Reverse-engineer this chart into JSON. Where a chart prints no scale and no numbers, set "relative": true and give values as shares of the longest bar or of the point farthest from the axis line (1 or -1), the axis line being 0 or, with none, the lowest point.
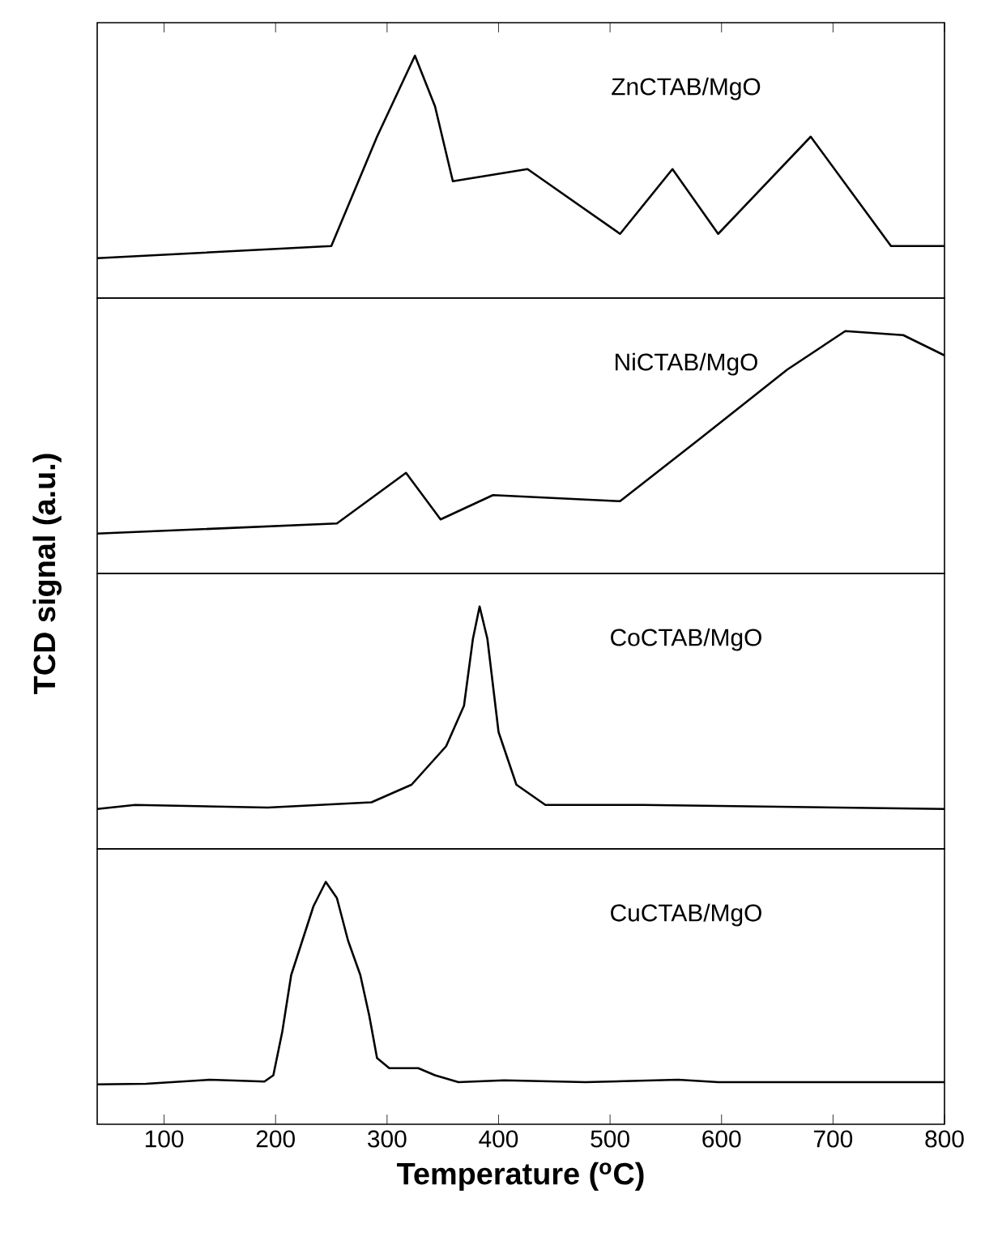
{
  "chart_data": [
    {
      "type": "line",
      "relative": true,
      "xlim": [
        40,
        800
      ],
      "xticks": [
        100,
        200,
        300,
        400,
        500,
        600,
        700,
        800
      ],
      "tick_labels": false,
      "x": [
        40,
        250,
        291,
        325,
        343,
        359,
        426,
        509,
        556,
        597,
        680,
        752,
        800
      ],
      "series": [
        {
          "name": "ZnCTAB/MgO",
          "color": "#000000",
          "values": [
            0,
            0.06,
            0.6,
            1.0,
            0.75,
            0.38,
            0.44,
            0.12,
            0.44,
            0.12,
            0.6,
            0.06,
            0.06
          ]
        }
      ]
    },
    {
      "type": "line",
      "relative": true,
      "xlim": [
        40,
        800
      ],
      "tick_labels": false,
      "x": [
        40,
        255,
        317,
        348,
        395,
        509,
        581,
        659,
        711,
        763,
        800
      ],
      "series": [
        {
          "name": "NiCTAB/MgO",
          "color": "#000000",
          "values": [
            0,
            0.05,
            0.3,
            0.07,
            0.19,
            0.16,
            0.47,
            0.81,
            1.0,
            0.98,
            0.88
          ]
        }
      ]
    },
    {
      "type": "line",
      "relative": true,
      "xlim": [
        40,
        800
      ],
      "tick_labels": false,
      "x": [
        40,
        74,
        193,
        286,
        322,
        353,
        369,
        377,
        383,
        390,
        400,
        416,
        442,
        530,
        800
      ],
      "series": [
        {
          "name": "CoCTAB/MgO",
          "color": "#000000",
          "values": [
            0,
            0.02,
            0.007,
            0.033,
            0.12,
            0.31,
            0.51,
            0.84,
            1.0,
            0.84,
            0.38,
            0.12,
            0.02,
            0.02,
            0
          ]
        }
      ]
    },
    {
      "type": "line",
      "relative": true,
      "xlim": [
        40,
        800
      ],
      "xticks": [
        100,
        200,
        300,
        400,
        500,
        600,
        700,
        800
      ],
      "tick_labels": "x",
      "xlabel": "Temperature ($^{o}$C)",
      "ylabel": "TCD signal (a.u.)",
      "x": [
        40,
        84,
        141,
        190,
        198,
        206,
        214,
        224,
        234,
        245,
        255,
        265,
        276,
        284,
        291,
        302,
        328,
        343,
        364,
        405,
        478,
        561,
        597,
        800
      ],
      "series": [
        {
          "name": "CuCTAB/MgO",
          "color": "#000000",
          "values": [
            0,
            0.003,
            0.023,
            0.014,
            0.045,
            0.26,
            0.54,
            0.71,
            0.88,
            1.0,
            0.92,
            0.71,
            0.54,
            0.34,
            0.13,
            0.08,
            0.08,
            0.045,
            0.011,
            0.02,
            0.011,
            0.023,
            0.011,
            0.011
          ]
        }
      ]
    }
  ]
}
